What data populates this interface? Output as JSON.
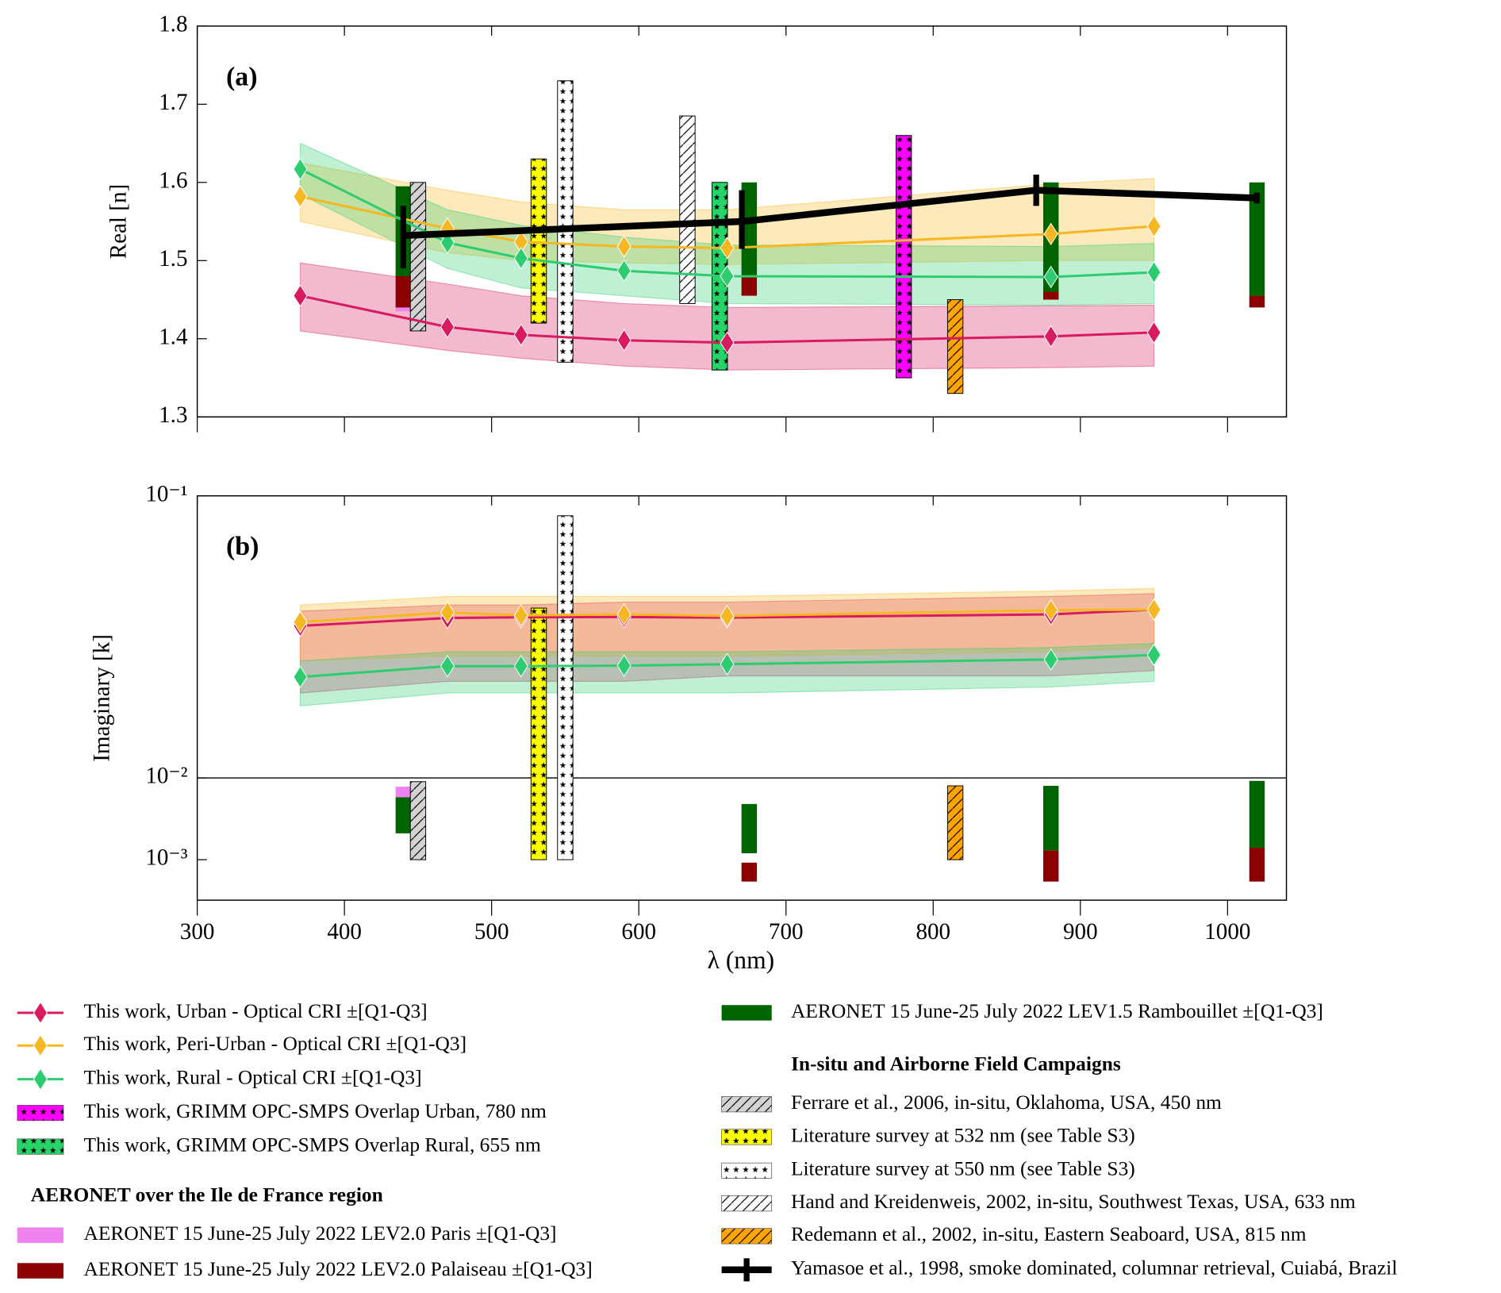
{
  "chart_data": {
    "type": "line",
    "x_label": "λ (nm)",
    "xlim": [
      300,
      1040
    ],
    "xticks": [
      300,
      400,
      500,
      600,
      700,
      800,
      900,
      1000
    ],
    "panels": [
      {
        "label": "(a)",
        "y_label": "Real [n]",
        "scale": "linear",
        "ylim": [
          1.3,
          1.8
        ],
        "yticks": [
          1.3,
          1.4,
          1.5,
          1.6,
          1.7,
          1.8
        ]
      },
      {
        "label": "(b)",
        "y_label": "Imaginary [k]",
        "scale": "log",
        "ylim": [
          0.01,
          0.1
        ],
        "ylim_lower": [
          0.00032,
          0.01
        ],
        "yticks": [
          {
            "value": 0.1,
            "label": "10⁻¹"
          },
          {
            "value": 0.01,
            "label": "10⁻²"
          },
          {
            "value": 0.001,
            "label": "10⁻³"
          }
        ]
      }
    ],
    "legend_headers": [
      "AERONET over the Ile de France region",
      "In-situ and Airborne Field Campaigns"
    ],
    "series": [
      {
        "name": "This work, Urban - Optical CRI ±[Q1-Q3]",
        "color": "#d81b60",
        "style": "line",
        "panels": [
          {
            "x": [
              370,
              470,
              520,
              590,
              660,
              880,
              950
            ],
            "values": [
              1.455,
              1.415,
              1.405,
              1.398,
              1.395,
              1.403,
              1.408
            ],
            "q1": [
              1.41,
              1.385,
              1.375,
              1.365,
              1.36,
              1.363,
              1.365
            ],
            "q3": [
              1.497,
              1.47,
              1.455,
              1.445,
              1.44,
              1.442,
              1.443
            ]
          },
          {
            "x": [
              370,
              470,
              520,
              590,
              660,
              880,
              950
            ],
            "values": [
              0.0346,
              0.0369,
              0.0371,
              0.0372,
              0.037,
              0.038,
              0.0395
            ],
            "q1": [
              0.02,
              0.022,
              0.022,
              0.022,
              0.023,
              0.023,
              0.024
            ],
            "q3": [
              0.039,
              0.041,
              0.041,
              0.042,
              0.042,
              0.044,
              0.045
            ]
          }
        ]
      },
      {
        "name": "This work, Peri-Urban - Optical CRI ±[Q1-Q3]",
        "color": "#f5b722",
        "style": "line",
        "panels": [
          {
            "x": [
              370,
              470,
              520,
              590,
              660,
              880,
              950
            ],
            "values": [
              1.582,
              1.541,
              1.524,
              1.518,
              1.516,
              1.534,
              1.544
            ],
            "q1": [
              1.55,
              1.51,
              1.5,
              1.497,
              1.495,
              1.5,
              1.5
            ],
            "q3": [
              1.625,
              1.59,
              1.575,
              1.565,
              1.565,
              1.598,
              1.605
            ]
          },
          {
            "x": [
              370,
              470,
              520,
              590,
              660,
              880,
              950
            ],
            "values": [
              0.0357,
              0.0386,
              0.0377,
              0.038,
              0.0375,
              0.0393,
              0.0395
            ],
            "q1": [
              0.026,
              0.027,
              0.027,
              0.027,
              0.027,
              0.028,
              0.029
            ],
            "q3": [
              0.041,
              0.044,
              0.044,
              0.044,
              0.044,
              0.046,
              0.047
            ]
          }
        ]
      },
      {
        "name": "This work, Rural - Optical CRI ±[Q1-Q3]",
        "color": "#2ecc71",
        "style": "line",
        "panels": [
          {
            "x": [
              370,
              470,
              520,
              590,
              660,
              880,
              950
            ],
            "values": [
              1.617,
              1.523,
              1.503,
              1.487,
              1.48,
              1.479,
              1.485
            ],
            "q1": [
              1.585,
              1.49,
              1.465,
              1.455,
              1.445,
              1.443,
              1.445
            ],
            "q3": [
              1.65,
              1.565,
              1.545,
              1.53,
              1.52,
              1.518,
              1.522
            ]
          },
          {
            "x": [
              370,
              470,
              520,
              590,
              660,
              880,
              950
            ],
            "values": [
              0.0228,
              0.0249,
              0.0249,
              0.025,
              0.0253,
              0.0263,
              0.0273
            ],
            "q1": [
              0.018,
              0.02,
              0.02,
              0.02,
              0.02,
              0.021,
              0.022
            ],
            "q3": [
              0.026,
              0.028,
              0.028,
              0.028,
              0.028,
              0.029,
              0.03
            ]
          }
        ]
      },
      {
        "name": "This work, GRIMM OPC-SMPS Overlap Urban, 780 nm",
        "color": "#ff00ff",
        "style": "bar",
        "pattern": "stars",
        "panels": [
          {
            "x": [
              780
            ],
            "low": [
              1.35
            ],
            "high": [
              1.66
            ]
          },
          {
            "x": [],
            "low": [],
            "high": []
          }
        ]
      },
      {
        "name": "This work, GRIMM OPC-SMPS Overlap Rural, 655 nm",
        "color": "#27d468",
        "style": "bar",
        "pattern": "stars",
        "panels": [
          {
            "x": [
              655
            ],
            "low": [
              1.36
            ],
            "high": [
              1.6
            ]
          },
          {
            "x": [],
            "low": [],
            "high": []
          }
        ]
      },
      {
        "name": "AERONET 15 June-25 July 2022 LEV2.0 Paris ±[Q1-Q3]",
        "color": "#ee82ee",
        "style": "bar",
        "pattern": "solid",
        "panels": [
          {
            "x": [
              440
            ],
            "low": [
              1.435
            ],
            "high": [
              1.445
            ]
          },
          {
            "x": [
              440
            ],
            "low": [
              0.0058
            ],
            "high": [
              0.0078
            ]
          }
        ]
      },
      {
        "name": "AERONET 15 June-25 July 2022 LEV2.0 Palaiseau ±[Q1-Q3]",
        "color": "#8b0000",
        "style": "bar",
        "pattern": "solid",
        "panels": [
          {
            "x": [
              440,
              675,
              880,
              1020
            ],
            "low": [
              1.44,
              1.455,
              1.45,
              1.44
            ],
            "high": [
              1.485,
              1.48,
              1.465,
              1.455
            ]
          },
          {
            "x": [
              675,
              880,
              1020
            ],
            "low": [
              0.00054,
              0.00054,
              0.00054
            ],
            "high": [
              0.00092,
              0.0013,
              0.0014
            ]
          }
        ]
      },
      {
        "name": "AERONET 15 June-25 July 2022 LEV1.5 Rambouillet ±[Q1-Q3]",
        "color": "#006400",
        "style": "bar",
        "pattern": "solid",
        "panels": [
          {
            "x": [
              440,
              675,
              880,
              1020
            ],
            "low": [
              1.48,
              1.48,
              1.46,
              1.455
            ],
            "high": [
              1.595,
              1.6,
              1.6,
              1.6
            ]
          },
          {
            "x": [
              440,
              675,
              880,
              1020
            ],
            "low": [
              0.0021,
              0.0012,
              0.0013,
              0.0014
            ],
            "high": [
              0.0058,
              0.0048,
              0.008,
              0.0092
            ]
          }
        ]
      },
      {
        "name": "Ferrare et al., 2006, in-situ, Oklahoma, USA, 450 nm",
        "color": "#d3d3d3",
        "style": "bar",
        "pattern": "hatch",
        "panels": [
          {
            "x": [
              450
            ],
            "low": [
              1.41
            ],
            "high": [
              1.6
            ]
          },
          {
            "x": [
              450
            ],
            "low": [
              0.001
            ],
            "high": [
              0.009
            ]
          }
        ]
      },
      {
        "name": "Literature survey at 532 nm (see Table S3)",
        "color": "#ffff00",
        "style": "bar",
        "pattern": "stars",
        "panels": [
          {
            "x": [
              532
            ],
            "low": [
              1.42
            ],
            "high": [
              1.63
            ]
          },
          {
            "x": [
              532
            ],
            "low": [
              0.001
            ],
            "high": [
              0.04
            ]
          }
        ]
      },
      {
        "name": "Literature survey at 550 nm (see Table S3)",
        "color": "#ffffff",
        "style": "bar",
        "pattern": "stars",
        "panels": [
          {
            "x": [
              550
            ],
            "low": [
              1.37
            ],
            "high": [
              1.73
            ]
          },
          {
            "x": [
              550
            ],
            "low": [
              0.001
            ],
            "high": [
              0.085
            ]
          }
        ]
      },
      {
        "name": "Hand and Kreidenweis, 2002, in-situ, Southwest Texas, USA, 633 nm",
        "color": "#ffffff",
        "style": "bar",
        "pattern": "hatch",
        "panels": [
          {
            "x": [
              633
            ],
            "low": [
              1.445
            ],
            "high": [
              1.685
            ]
          },
          {
            "x": [],
            "low": [],
            "high": []
          }
        ]
      },
      {
        "name": "Redemann et al., 2002, in-situ, Eastern Seaboard, USA, 815 nm",
        "color": "#ffa500",
        "style": "bar",
        "pattern": "hatch",
        "panels": [
          {
            "x": [
              815
            ],
            "low": [
              1.33
            ],
            "high": [
              1.45
            ]
          },
          {
            "x": [
              815
            ],
            "low": [
              0.001
            ],
            "high": [
              0.008
            ]
          }
        ]
      },
      {
        "name": "Yamasoe et al., 1998, smoke dominated, columnar retrieval, Cuiabá, Brazil",
        "color": "#000000",
        "style": "errorline",
        "panels": [
          {
            "x": [
              440,
              670,
              870,
              1020
            ],
            "values": [
              1.532,
              1.55,
              1.59,
              1.58
            ],
            "low": [
              1.49,
              1.515,
              1.57,
              1.573
            ],
            "high": [
              1.57,
              1.59,
              1.61,
              1.587
            ]
          },
          {
            "x": [],
            "values": [],
            "low": [],
            "high": []
          }
        ]
      }
    ]
  }
}
